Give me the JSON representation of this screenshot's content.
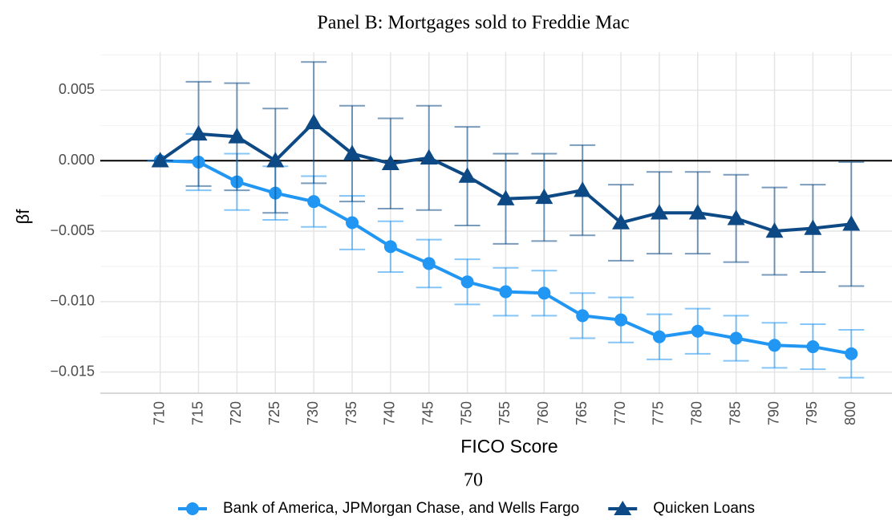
{
  "chart_data": {
    "type": "line",
    "title": "Panel B: Mortgages sold to Freddie Mac",
    "xlabel": "FICO Score",
    "ylabel": "βf",
    "page_number": "70",
    "x": [
      710,
      715,
      720,
      725,
      730,
      735,
      740,
      745,
      750,
      755,
      760,
      765,
      770,
      775,
      780,
      785,
      790,
      795,
      800
    ],
    "series": [
      {
        "name": "Bank of America, JPMorgan Chase, and Wells Fargo",
        "color": "#2196f3",
        "marker": "circle",
        "values": [
          0,
          -0.0001,
          -0.0015,
          -0.0023,
          -0.0029,
          -0.0044,
          -0.0061,
          -0.0073,
          -0.0086,
          -0.0093,
          -0.0094,
          -0.011,
          -0.0113,
          -0.0125,
          -0.0121,
          -0.0126,
          -0.0131,
          -0.0132,
          -0.0137
        ],
        "errors": [
          0,
          0.002,
          0.002,
          0.0019,
          0.0018,
          0.0019,
          0.0018,
          0.0017,
          0.0016,
          0.0017,
          0.0016,
          0.0016,
          0.0016,
          0.0016,
          0.0016,
          0.0016,
          0.0016,
          0.0016,
          0.0017
        ]
      },
      {
        "name": "Quicken Loans",
        "color": "#0d4a85",
        "marker": "triangle",
        "values": [
          0,
          0.0019,
          0.0017,
          0,
          0.0027,
          0.0005,
          -0.0002,
          0.0002,
          -0.0011,
          -0.0027,
          -0.0026,
          -0.0021,
          -0.0044,
          -0.0037,
          -0.0037,
          -0.0041,
          -0.005,
          -0.0048,
          -0.0045
        ],
        "errors": [
          0,
          0.0037,
          0.0038,
          0.0037,
          0.0043,
          0.0034,
          0.0032,
          0.0037,
          0.0035,
          0.0032,
          0.0031,
          0.0032,
          0.0027,
          0.0029,
          0.0029,
          0.0031,
          0.0031,
          0.0031,
          0.0044
        ]
      }
    ],
    "xlim": [
      702.2,
      805.3
    ],
    "ylim": [
      -0.0165,
      0.0077
    ],
    "xticks": [
      710,
      715,
      720,
      725,
      730,
      735,
      740,
      745,
      750,
      755,
      760,
      765,
      770,
      775,
      780,
      785,
      790,
      795,
      800
    ],
    "yticks": [
      {
        "value": 0.005,
        "label": "0.005"
      },
      {
        "value": 0,
        "label": "0.000"
      },
      {
        "value": -0.005,
        "label": "−0.005"
      },
      {
        "value": -0.01,
        "label": "−0.010"
      },
      {
        "value": -0.015,
        "label": "−0.015"
      }
    ],
    "hline": 0,
    "grid": true,
    "legend": "bottom"
  }
}
